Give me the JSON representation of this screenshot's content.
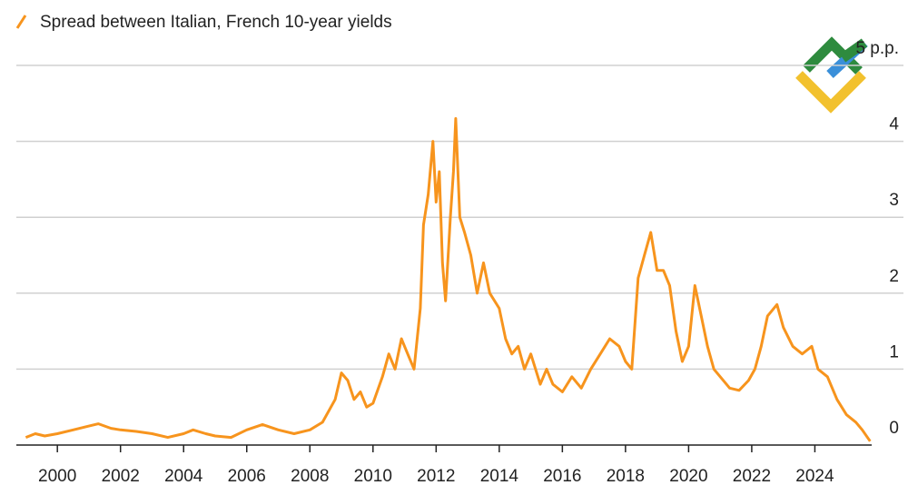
{
  "chart_data": {
    "type": "line",
    "title": "Spread between Italian, French 10-year yields",
    "series": [
      {
        "name": "Spread between Italian, French 10-year yields",
        "color": "#f7941d",
        "x": [
          1999.0,
          1999.3,
          1999.6,
          2000.0,
          2000.5,
          2001.0,
          2001.3,
          2001.7,
          2002.0,
          2002.5,
          2003.0,
          2003.5,
          2004.0,
          2004.3,
          2004.7,
          2005.0,
          2005.5,
          2006.0,
          2006.5,
          2007.0,
          2007.5,
          2008.0,
          2008.4,
          2008.8,
          2009.0,
          2009.2,
          2009.4,
          2009.6,
          2009.8,
          2010.0,
          2010.3,
          2010.5,
          2010.7,
          2010.9,
          2011.1,
          2011.3,
          2011.5,
          2011.6,
          2011.75,
          2011.9,
          2012.0,
          2012.1,
          2012.2,
          2012.3,
          2012.45,
          2012.55,
          2012.62,
          2012.75,
          2012.9,
          2013.1,
          2013.3,
          2013.5,
          2013.7,
          2014.0,
          2014.2,
          2014.4,
          2014.6,
          2014.8,
          2015.0,
          2015.3,
          2015.5,
          2015.7,
          2016.0,
          2016.3,
          2016.6,
          2016.9,
          2017.2,
          2017.5,
          2017.8,
          2018.0,
          2018.2,
          2018.4,
          2018.6,
          2018.8,
          2019.0,
          2019.2,
          2019.4,
          2019.6,
          2019.8,
          2020.0,
          2020.2,
          2020.4,
          2020.6,
          2020.8,
          2021.0,
          2021.3,
          2021.6,
          2021.9,
          2022.1,
          2022.3,
          2022.5,
          2022.8,
          2023.0,
          2023.3,
          2023.6,
          2023.9,
          2024.1,
          2024.4,
          2024.7,
          2025.0,
          2025.3,
          2025.5,
          2025.75
        ],
        "values": [
          0.1,
          0.15,
          0.12,
          0.15,
          0.2,
          0.25,
          0.28,
          0.22,
          0.2,
          0.18,
          0.15,
          0.1,
          0.15,
          0.2,
          0.15,
          0.12,
          0.1,
          0.2,
          0.27,
          0.2,
          0.15,
          0.2,
          0.3,
          0.6,
          0.95,
          0.85,
          0.6,
          0.7,
          0.5,
          0.55,
          0.9,
          1.2,
          1.0,
          1.4,
          1.2,
          1.0,
          1.8,
          2.9,
          3.3,
          4.0,
          3.2,
          3.6,
          2.4,
          1.9,
          3.0,
          3.6,
          4.3,
          3.0,
          2.8,
          2.5,
          2.0,
          2.4,
          2.0,
          1.8,
          1.4,
          1.2,
          1.3,
          1.0,
          1.2,
          0.8,
          1.0,
          0.8,
          0.7,
          0.9,
          0.75,
          1.0,
          1.2,
          1.4,
          1.3,
          1.1,
          1.0,
          2.2,
          2.5,
          2.8,
          2.3,
          2.3,
          2.1,
          1.5,
          1.1,
          1.3,
          2.1,
          1.7,
          1.3,
          1.0,
          0.9,
          0.75,
          0.72,
          0.85,
          1.0,
          1.3,
          1.7,
          1.85,
          1.55,
          1.3,
          1.2,
          1.3,
          1.0,
          0.9,
          0.6,
          0.4,
          0.3,
          0.2,
          0.05
        ]
      }
    ],
    "xlim": [
      1998.7,
      2025.8
    ],
    "xticks": [
      2000,
      2002,
      2004,
      2006,
      2008,
      2010,
      2012,
      2014,
      2016,
      2018,
      2020,
      2022,
      2024
    ],
    "ylim": [
      0,
      5
    ],
    "yticks": [
      0,
      1,
      2,
      3,
      4,
      {
        "value": 5,
        "label": "5 p.p."
      }
    ],
    "grid": true
  }
}
